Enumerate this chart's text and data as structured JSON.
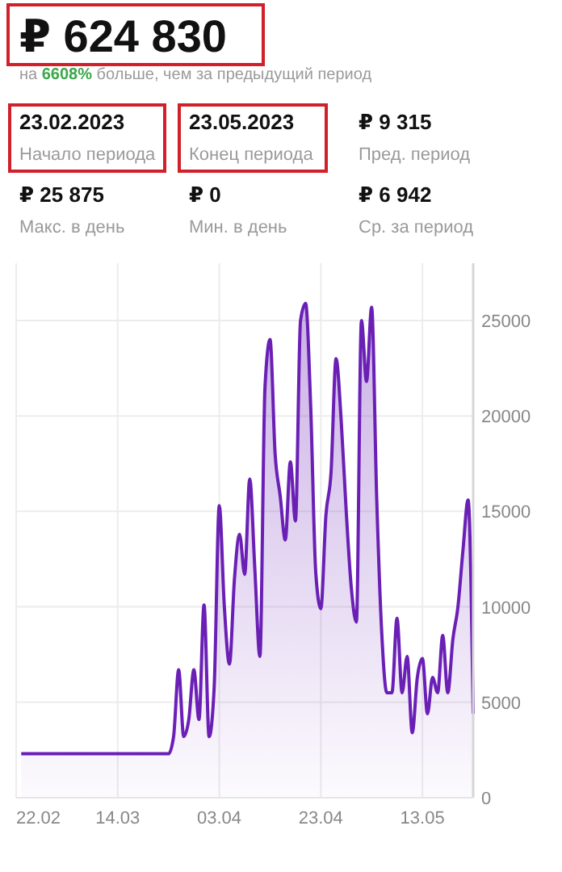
{
  "chart_data": [
    {
      "type": "other",
      "title": "₽ 624 830",
      "subtitle": "на 6608% больше, чем за предыдущий период",
      "annotations": [
        "23.02.2023",
        "Начало периода",
        "23.05.2023",
        "Конец периода",
        "₽  9 315",
        "Пред. период",
        "₽ 25 875",
        "Макс. в день",
        "₽ 0",
        "Мин. в день",
        "₽ 6 942",
        "Ср. за период"
      ]
    },
    {
      "type": "area",
      "grid": true,
      "xlim": [
        "2023-02-22",
        "2023-05-23"
      ],
      "xticks": [
        {
          "value": "2023-02-22",
          "label": "22.02"
        },
        {
          "value": "2023-03-14",
          "label": "14.03"
        },
        {
          "value": "2023-04-03",
          "label": "03.04"
        },
        {
          "value": "2023-04-23",
          "label": "23.04"
        },
        {
          "value": "2023-05-13",
          "label": "13.05"
        }
      ],
      "ylim": [
        0,
        28000
      ],
      "yticks": [
        0,
        5000,
        10000,
        15000,
        20000,
        25000
      ],
      "series": [
        {
          "color": "#6a1fb5",
          "x": [
            "2023-02-23",
            "2023-03-24",
            "2023-03-25",
            "2023-03-26",
            "2023-03-27",
            "2023-03-28",
            "2023-03-29",
            "2023-03-30",
            "2023-03-31",
            "2023-04-01",
            "2023-04-02",
            "2023-04-03",
            "2023-04-04",
            "2023-04-05",
            "2023-04-06",
            "2023-04-07",
            "2023-04-08",
            "2023-04-09",
            "2023-04-10",
            "2023-04-11",
            "2023-04-12",
            "2023-04-13",
            "2023-04-14",
            "2023-04-15",
            "2023-04-16",
            "2023-04-17",
            "2023-04-18",
            "2023-04-19",
            "2023-04-20",
            "2023-04-21",
            "2023-04-22",
            "2023-04-23",
            "2023-04-24",
            "2023-04-25",
            "2023-04-26",
            "2023-04-27",
            "2023-04-28",
            "2023-04-29",
            "2023-04-30",
            "2023-05-01",
            "2023-05-02",
            "2023-05-03",
            "2023-05-04",
            "2023-05-05",
            "2023-05-06",
            "2023-05-07",
            "2023-05-08",
            "2023-05-09",
            "2023-05-10",
            "2023-05-11",
            "2023-05-12",
            "2023-05-13",
            "2023-05-14",
            "2023-05-15",
            "2023-05-16",
            "2023-05-17",
            "2023-05-18",
            "2023-05-19",
            "2023-05-20",
            "2023-05-21",
            "2023-05-22",
            "2023-05-23"
          ],
          "values": [
            2300,
            2300,
            3200,
            6700,
            3200,
            4100,
            6700,
            4100,
            10100,
            3200,
            5800,
            15300,
            10000,
            7000,
            11500,
            13800,
            11700,
            16700,
            12000,
            7400,
            21500,
            24000,
            18000,
            15800,
            13500,
            17600,
            14500,
            25000,
            25900,
            20500,
            11800,
            9900,
            14800,
            17000,
            23000,
            19800,
            15000,
            11000,
            9200,
            25000,
            21800,
            25700,
            15700,
            8600,
            5500,
            5500,
            9400,
            5500,
            7400,
            3400,
            6300,
            7300,
            4400,
            6300,
            5500,
            8500,
            5500,
            8300,
            10000,
            13000,
            15600,
            4400
          ]
        }
      ]
    }
  ]
}
